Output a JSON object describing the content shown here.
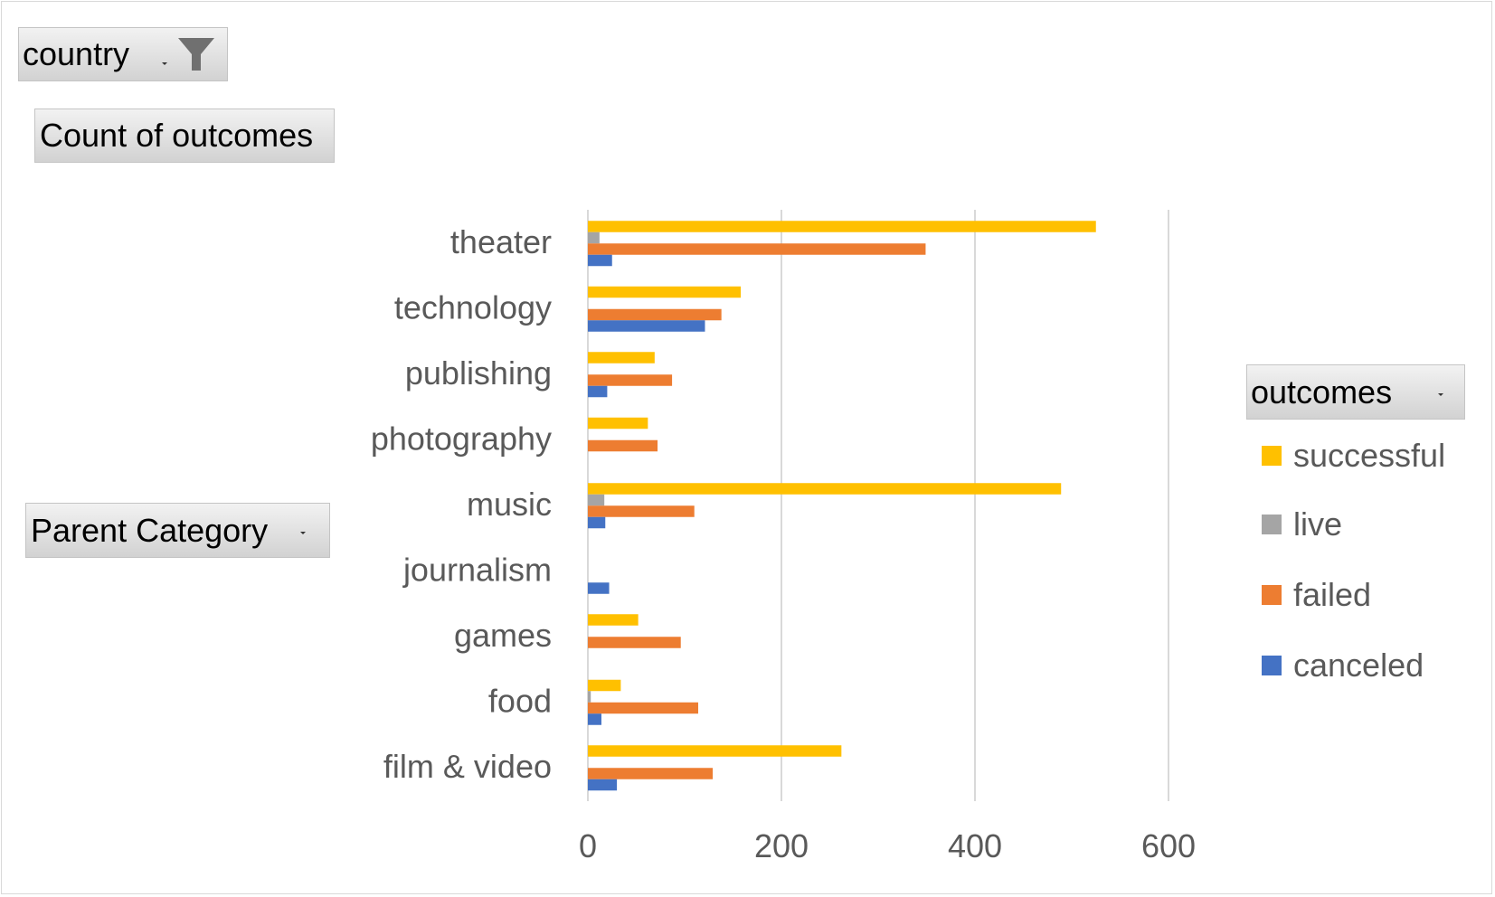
{
  "filters": {
    "country": {
      "label": "country"
    },
    "values_field": {
      "label": "Count of outcomes"
    },
    "axis_field": {
      "label": "Parent Category"
    },
    "legend_field": {
      "label": "outcomes"
    }
  },
  "icons": {
    "filter": "funnel-filter-icon",
    "dropdown": "dropdown-arrow-icon"
  },
  "chart_data": {
    "type": "bar",
    "orientation": "horizontal",
    "categories": [
      "theater",
      "technology",
      "publishing",
      "photography",
      "music",
      "journalism",
      "games",
      "food",
      "film & video"
    ],
    "series": [
      {
        "name": "successful",
        "color": "#FFC000",
        "values": [
          525,
          158,
          69,
          62,
          489,
          0,
          52,
          34,
          262
        ]
      },
      {
        "name": "live",
        "color": "#A5A5A5",
        "values": [
          12,
          0,
          0,
          0,
          17,
          0,
          0,
          3,
          0
        ]
      },
      {
        "name": "failed",
        "color": "#ED7D31",
        "values": [
          349,
          138,
          87,
          72,
          110,
          0,
          96,
          114,
          129
        ]
      },
      {
        "name": "canceled",
        "color": "#4472C4",
        "values": [
          25,
          121,
          20,
          0,
          18,
          22,
          0,
          14,
          30
        ]
      }
    ],
    "x_ticks": [
      "0",
      "200",
      "400",
      "600"
    ],
    "xlim": [
      0,
      600
    ],
    "grid": true,
    "legend_position": "right"
  }
}
